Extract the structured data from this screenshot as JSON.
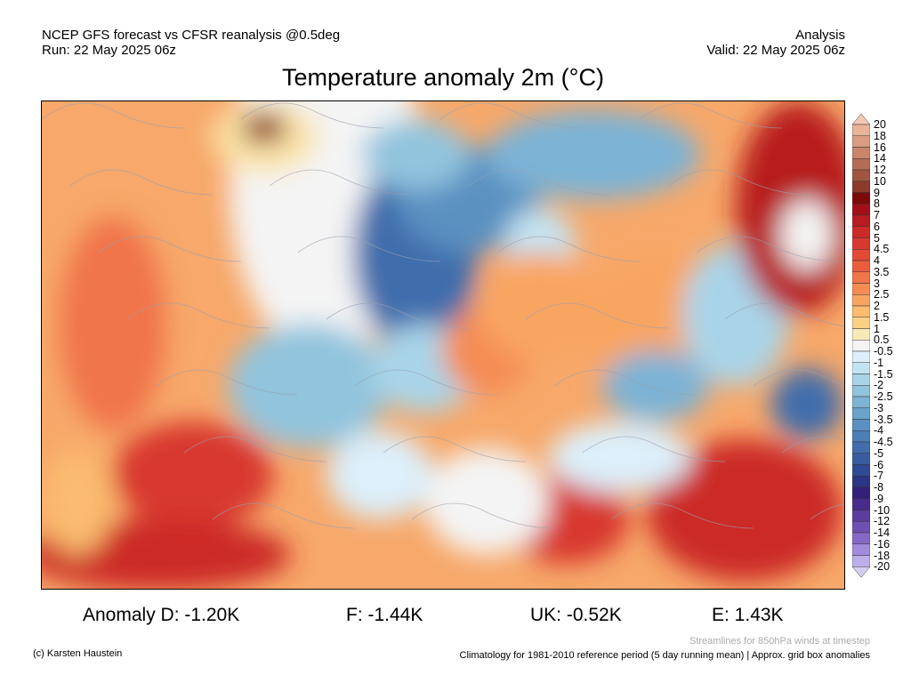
{
  "header": {
    "model": "NCEP GFS forecast vs CFSR reanalysis @0.5deg",
    "run": "Run: 22 May 2025 06z",
    "type": "Analysis",
    "valid": "Valid: 22 May 2025 06z",
    "title": "Temperature anomaly 2m (°C)"
  },
  "anomalies": [
    {
      "label": "Anomaly D: -1.20K"
    },
    {
      "label": "F: -1.44K"
    },
    {
      "label": "UK: -0.52K"
    },
    {
      "label": "E: 1.43K"
    }
  ],
  "colorbar": {
    "labels": [
      "20",
      "18",
      "16",
      "14",
      "12",
      "10",
      "9",
      "8",
      "7",
      "6",
      "5",
      "4.5",
      "4",
      "3.5",
      "3",
      "2.5",
      "2",
      "1.5",
      "1",
      "0.5",
      "-0.5",
      "-1",
      "-1.5",
      "-2",
      "-2.5",
      "-3",
      "-3.5",
      "-4",
      "-4.5",
      "-5",
      "-6",
      "-7",
      "-8",
      "-9",
      "-10",
      "-12",
      "-14",
      "-16",
      "-18",
      "-20"
    ],
    "colors": [
      "#f5c9b3",
      "#e8b398",
      "#d99c80",
      "#c8856a",
      "#b46d55",
      "#a05540",
      "#8b3a2c",
      "#7d0a0a",
      "#a01016",
      "#b81c1f",
      "#cc2a26",
      "#d8382f",
      "#e34a36",
      "#ea5e3e",
      "#f07548",
      "#f58c54",
      "#f9a562",
      "#fbbb70",
      "#fcd185",
      "#f8eab8",
      "#f4f4f4",
      "#dceffa",
      "#c4e3f2",
      "#a9d4e8",
      "#92c4de",
      "#7db3d5",
      "#69a2cb",
      "#5a91c1",
      "#4c7fb7",
      "#416dac",
      "#385ca0",
      "#2f4994",
      "#2a3585",
      "#33207a",
      "#472c8c",
      "#5a3d9e",
      "#6d52b3",
      "#8669c7",
      "#a18bdb",
      "#bcaee9",
      "#d5cdf3"
    ]
  },
  "footer": {
    "credit": "(c) Karsten Haustein",
    "streamlines": "Streamlines for 850hPa winds at timestep",
    "climatology": "Climatology for 1981-2010 reference period (5 day running mean) | Approx. grid box anomalies"
  }
}
